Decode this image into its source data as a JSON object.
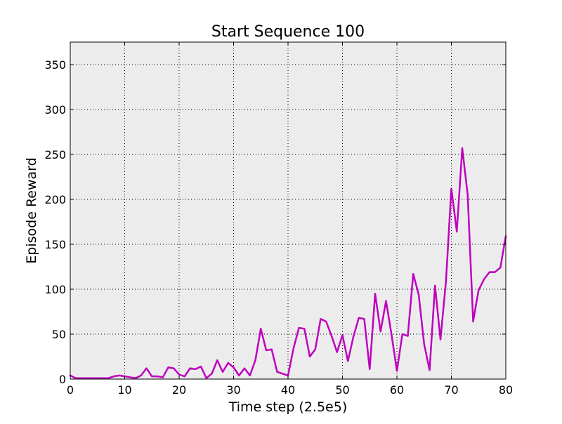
{
  "chart_data": {
    "type": "line",
    "title": "Start Sequence 100",
    "xlabel": "Time step (2.5e5)",
    "ylabel": "Episode Reward",
    "xlim": [
      0,
      80
    ],
    "ylim": [
      0,
      375
    ],
    "xticks": [
      0,
      10,
      20,
      30,
      40,
      50,
      60,
      70,
      80
    ],
    "yticks": [
      0,
      50,
      100,
      150,
      200,
      250,
      300,
      350
    ],
    "grid": true,
    "legend": "none",
    "colors": {
      "series": "#bf00bf",
      "plot_background": "#ececec",
      "grid": "#000000",
      "frame": "#000000"
    },
    "series": [
      {
        "x": [
          0,
          1,
          2,
          3,
          4,
          5,
          6,
          7,
          8,
          9,
          10,
          11,
          12,
          13,
          14,
          15,
          16,
          17,
          18,
          19,
          20,
          21,
          22,
          23,
          24,
          25,
          26,
          27,
          28,
          29,
          30,
          31,
          32,
          33,
          34,
          35,
          36,
          37,
          38,
          39,
          40,
          41,
          42,
          43,
          44,
          45,
          46,
          47,
          48,
          49,
          50,
          51,
          52,
          53,
          54,
          55,
          56,
          57,
          58,
          59,
          60,
          61,
          62,
          63,
          64,
          65,
          66,
          67,
          68,
          69,
          70,
          71,
          72,
          73,
          74,
          75,
          76,
          77,
          78,
          79,
          80
        ],
        "y": [
          4,
          1,
          1,
          1,
          1,
          1,
          1,
          1,
          3,
          4,
          3,
          2,
          1,
          4,
          12,
          3,
          3,
          2,
          13,
          12,
          5,
          3,
          12,
          11,
          14,
          1,
          6,
          21,
          8,
          18,
          13,
          4,
          12,
          4,
          21,
          56,
          32,
          33,
          8,
          6,
          4,
          34,
          57,
          56,
          25,
          33,
          67,
          64,
          48,
          30,
          49,
          20,
          47,
          68,
          67,
          11,
          95,
          53,
          87,
          50,
          9,
          50,
          48,
          117,
          94,
          39,
          10,
          104,
          44,
          108,
          212,
          164,
          257,
          205,
          64,
          99,
          111,
          119,
          119,
          124,
          159
        ]
      }
    ]
  }
}
